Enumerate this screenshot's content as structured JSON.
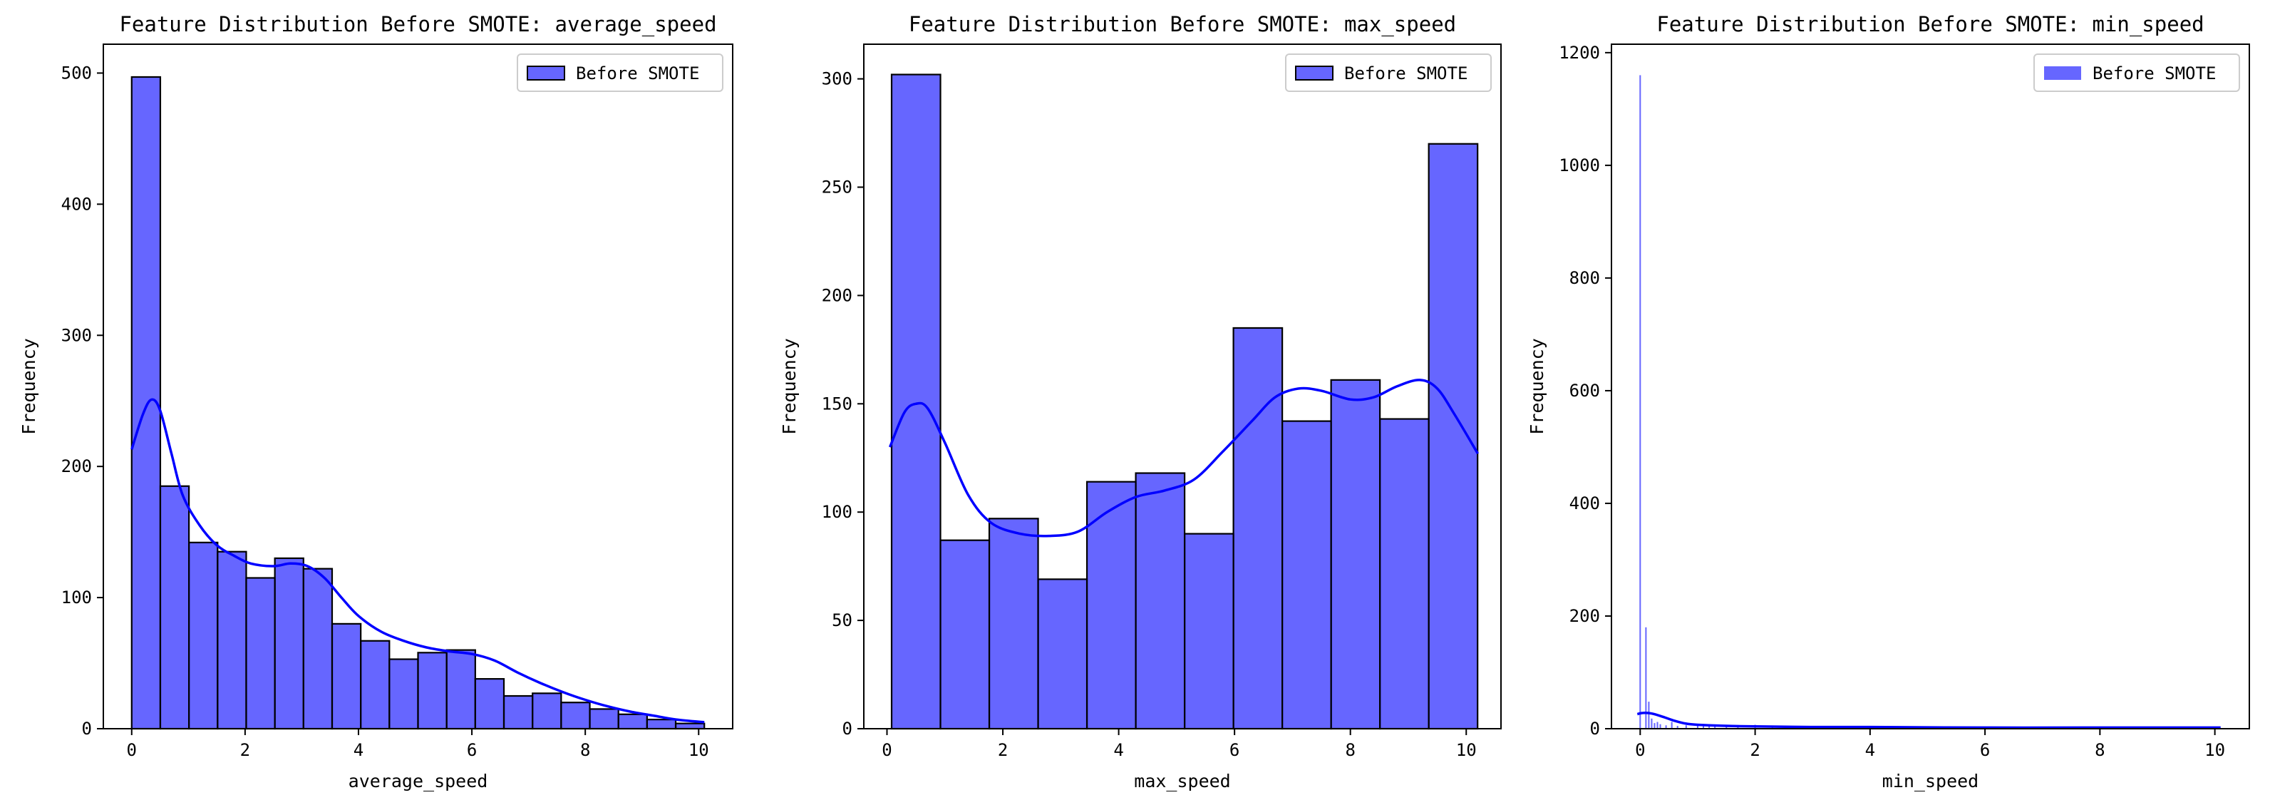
{
  "chart_data": [
    {
      "type": "histogram",
      "title": "Feature Distribution Before SMOTE: average_speed",
      "xlabel": "average_speed",
      "ylabel": "Frequency",
      "xlim": [
        -0.5,
        10.6
      ],
      "ylim": [
        0,
        522
      ],
      "xticks": [
        0,
        2,
        4,
        6,
        8,
        10
      ],
      "yticks": [
        0,
        100,
        200,
        300,
        400,
        500
      ],
      "bin_start": 0,
      "bin_width": 0.505,
      "values": [
        497,
        185,
        142,
        135,
        115,
        130,
        122,
        80,
        67,
        53,
        58,
        60,
        38,
        25,
        27,
        20,
        15,
        11,
        7,
        4
      ],
      "edge": true,
      "kde": [
        [
          0,
          213
        ],
        [
          0.2,
          240
        ],
        [
          0.35,
          251
        ],
        [
          0.5,
          243
        ],
        [
          0.7,
          210
        ],
        [
          0.9,
          178
        ],
        [
          1.2,
          155
        ],
        [
          1.5,
          140
        ],
        [
          1.8,
          132
        ],
        [
          2.1,
          126
        ],
        [
          2.5,
          124
        ],
        [
          2.8,
          126
        ],
        [
          3.1,
          124
        ],
        [
          3.4,
          115
        ],
        [
          3.7,
          100
        ],
        [
          4.0,
          86
        ],
        [
          4.4,
          74
        ],
        [
          4.8,
          67
        ],
        [
          5.2,
          62
        ],
        [
          5.6,
          59
        ],
        [
          6.0,
          57
        ],
        [
          6.4,
          52
        ],
        [
          6.8,
          43
        ],
        [
          7.2,
          35
        ],
        [
          7.6,
          28
        ],
        [
          8.0,
          22
        ],
        [
          8.4,
          17
        ],
        [
          8.8,
          13
        ],
        [
          9.2,
          10
        ],
        [
          9.6,
          7
        ],
        [
          10.1,
          5
        ]
      ],
      "legend": {
        "label": "Before SMOTE",
        "position": "upper right"
      },
      "color": "#0000ff",
      "bar_alpha": 0.6
    },
    {
      "type": "histogram",
      "title": "Feature Distribution Before SMOTE: max_speed",
      "xlabel": "max_speed",
      "ylabel": "Frequency",
      "xlim": [
        -0.4,
        10.6
      ],
      "ylim": [
        0,
        316
      ],
      "xticks": [
        0,
        2,
        4,
        6,
        8,
        10
      ],
      "yticks": [
        0,
        50,
        100,
        150,
        200,
        250,
        300
      ],
      "bin_start": 0.08,
      "bin_width": 0.843,
      "values": [
        302,
        87,
        97,
        69,
        114,
        118,
        90,
        185,
        142,
        161,
        143,
        270
      ],
      "edge": true,
      "kde": [
        [
          0.05,
          130
        ],
        [
          0.3,
          146
        ],
        [
          0.5,
          150
        ],
        [
          0.7,
          148
        ],
        [
          1.0,
          132
        ],
        [
          1.4,
          108
        ],
        [
          1.8,
          95
        ],
        [
          2.3,
          90
        ],
        [
          2.8,
          89
        ],
        [
          3.3,
          91
        ],
        [
          3.8,
          100
        ],
        [
          4.3,
          107
        ],
        [
          4.8,
          110
        ],
        [
          5.3,
          115
        ],
        [
          5.8,
          128
        ],
        [
          6.3,
          142
        ],
        [
          6.7,
          153
        ],
        [
          7.1,
          157
        ],
        [
          7.5,
          156
        ],
        [
          8.0,
          152
        ],
        [
          8.4,
          153
        ],
        [
          8.8,
          158
        ],
        [
          9.2,
          161
        ],
        [
          9.5,
          157
        ],
        [
          9.8,
          145
        ],
        [
          10.2,
          127
        ]
      ],
      "legend": {
        "label": "Before SMOTE",
        "position": "upper right"
      },
      "color": "#0000ff",
      "bar_alpha": 0.6
    },
    {
      "type": "histogram",
      "title": "Feature Distribution Before SMOTE: min_speed",
      "xlabel": "min_speed",
      "ylabel": "Frequency",
      "xlim": [
        -0.5,
        10.6
      ],
      "ylim": [
        0,
        1215
      ],
      "xticks": [
        0,
        2,
        4,
        6,
        8,
        10
      ],
      "yticks": [
        0,
        200,
        400,
        600,
        800,
        1000,
        1200
      ],
      "bars": [
        [
          0.0,
          1160
        ],
        [
          0.1,
          180
        ],
        [
          0.15,
          48
        ],
        [
          0.2,
          18
        ],
        [
          0.25,
          10
        ],
        [
          0.3,
          12
        ],
        [
          0.35,
          8
        ],
        [
          0.45,
          6
        ],
        [
          0.55,
          12
        ],
        [
          0.65,
          5
        ],
        [
          0.8,
          6
        ],
        [
          1.0,
          8
        ],
        [
          1.1,
          6
        ],
        [
          1.2,
          8
        ],
        [
          1.3,
          7
        ],
        [
          1.5,
          6
        ],
        [
          1.7,
          5
        ],
        [
          2.0,
          7
        ],
        [
          2.3,
          5
        ],
        [
          2.6,
          4
        ],
        [
          3.0,
          5
        ],
        [
          3.4,
          4
        ],
        [
          3.8,
          4
        ],
        [
          4.2,
          4
        ],
        [
          4.6,
          3
        ],
        [
          5.0,
          3
        ],
        [
          5.4,
          4
        ],
        [
          5.8,
          3
        ],
        [
          6.2,
          3
        ],
        [
          6.6,
          3
        ],
        [
          7.0,
          2
        ],
        [
          7.4,
          2
        ],
        [
          7.8,
          2
        ],
        [
          8.2,
          2
        ],
        [
          8.6,
          2
        ],
        [
          9.0,
          2
        ],
        [
          9.4,
          2
        ],
        [
          9.8,
          2
        ],
        [
          10.0,
          2
        ]
      ],
      "bar_width": 0.025,
      "edge": false,
      "kde": [
        [
          -0.05,
          26
        ],
        [
          0.05,
          28
        ],
        [
          0.2,
          27
        ],
        [
          0.4,
          21
        ],
        [
          0.6,
          14
        ],
        [
          0.8,
          9
        ],
        [
          1.0,
          7
        ],
        [
          1.5,
          5
        ],
        [
          2.0,
          4
        ],
        [
          3.0,
          3
        ],
        [
          4.0,
          3
        ],
        [
          6.0,
          2
        ],
        [
          8.0,
          2
        ],
        [
          10.1,
          2
        ]
      ],
      "legend": {
        "label": "Before SMOTE",
        "position": "upper right"
      },
      "color": "#0000ff",
      "bar_alpha": 0.6
    }
  ]
}
